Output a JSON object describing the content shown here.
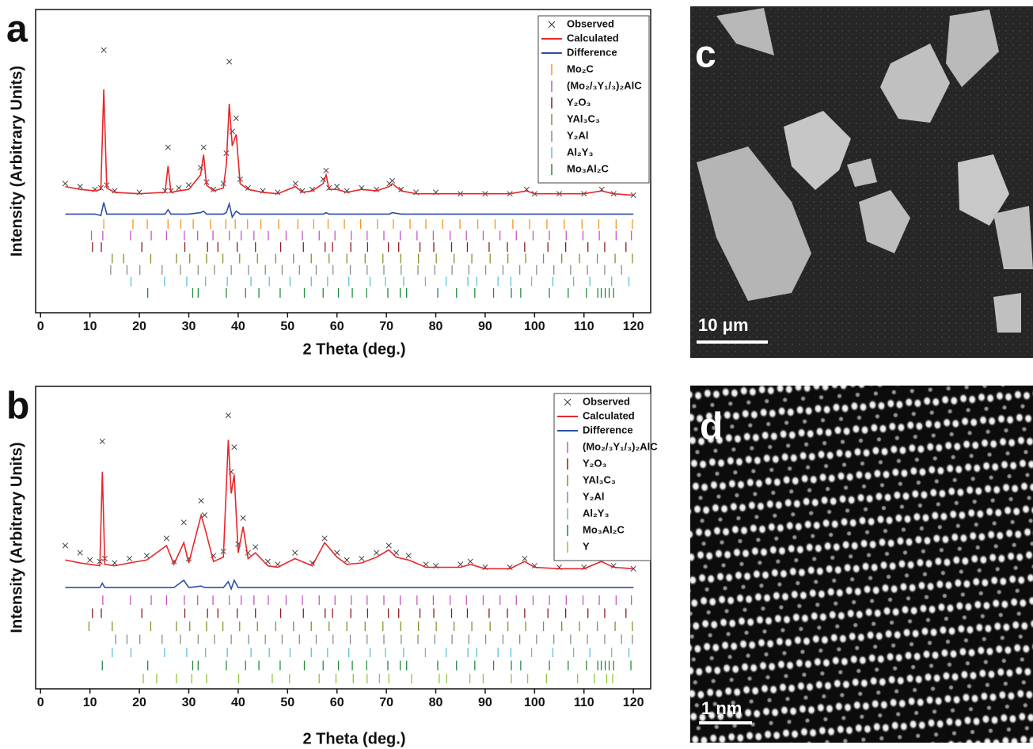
{
  "chart_data": [
    {
      "type": "line",
      "panel_label": "a",
      "xlabel": "2 Theta (deg.)",
      "ylabel": "Intensity (Arbitrary Units)",
      "xlim": [
        -1,
        123.5
      ],
      "xticks": [
        0,
        10,
        20,
        30,
        40,
        50,
        60,
        70,
        80,
        90,
        100,
        110,
        120
      ],
      "ylim": [
        -80,
        129
      ],
      "legend": "upper right",
      "x": [
        5,
        8,
        11,
        12.2,
        12.8,
        13.4,
        15,
        20,
        25.2,
        25.8,
        26.4,
        28,
        30,
        32.4,
        33,
        33.6,
        35,
        37,
        37.6,
        38.2,
        38.8,
        39.6,
        40.4,
        42,
        45,
        48,
        51.6,
        53,
        55,
        57.2,
        57.8,
        58.4,
        60,
        62,
        65,
        68,
        70.6,
        71.2,
        73,
        76,
        80,
        85,
        90,
        95,
        98.4,
        100,
        105,
        110,
        113.6,
        116,
        120
      ],
      "series": [
        {
          "name": "Observed",
          "color": "#333333",
          "marker": "x",
          "values": [
            9,
            7,
            5,
            6,
            101,
            8,
            4,
            3,
            4,
            34,
            4,
            6,
            8,
            20,
            34,
            10,
            5,
            9,
            30,
            93,
            45,
            54,
            12,
            6,
            4,
            3,
            9,
            4,
            5,
            12,
            18,
            6,
            7,
            4,
            6,
            5,
            9,
            11,
            5,
            3,
            3,
            2,
            2,
            2,
            5,
            2,
            2,
            2,
            5,
            2,
            1
          ]
        },
        {
          "name": "Calculated",
          "color": "#e8262a",
          "values": [
            7,
            5,
            4,
            5,
            74,
            6,
            3,
            2,
            3,
            21,
            3,
            4,
            5,
            15,
            29,
            8,
            4,
            6,
            22,
            64,
            35,
            43,
            9,
            5,
            3,
            2,
            7,
            3,
            4,
            9,
            15,
            5,
            5,
            3,
            5,
            4,
            7,
            9,
            4,
            2,
            2,
            2,
            2,
            2,
            4,
            2,
            2,
            2,
            4,
            2,
            1
          ]
        },
        {
          "name": "Difference",
          "color": "#2e4fa3",
          "values": [
            -12,
            -12,
            -12,
            -13,
            -4,
            -12,
            -12,
            -12,
            -12,
            -9,
            -12,
            -12,
            -12,
            -11,
            -10,
            -12,
            -12,
            -12,
            -11,
            -5,
            -14,
            -10,
            -12,
            -12,
            -12,
            -12,
            -12,
            -12,
            -12,
            -12,
            -11,
            -12,
            -12,
            -12,
            -12,
            -12,
            -12,
            -11,
            -12,
            -12,
            -12,
            -12,
            -12,
            -12,
            -12,
            -12,
            -12,
            -12,
            -12,
            -12,
            -12
          ]
        }
      ],
      "reflections": [
        {
          "name": "Mo₂C",
          "color": "#f7941d",
          "positions": [
            12.8,
            18.7,
            21.6,
            25.8,
            28.4,
            30.9,
            34.4,
            37.5,
            39.4,
            41.9,
            44.6,
            48.2,
            52.1,
            55.3,
            58.2,
            61.5,
            64.8,
            68.2,
            71.4,
            74.8,
            78,
            81.4,
            84.9,
            88.5,
            92,
            95.6,
            99,
            102.5,
            106,
            109.6,
            113,
            116.5,
            119.8
          ]
        },
        {
          "name": "(Mo₂/₃Y₁/₃)₂AlC",
          "color": "#c655c6",
          "positions": [
            10.3,
            12.6,
            18.2,
            22.4,
            25.5,
            29.1,
            31.8,
            34.9,
            38.2,
            40.6,
            43.2,
            46.1,
            49.7,
            53,
            56.4,
            59.6,
            62.9,
            66.1,
            69.5,
            72.8,
            76.2,
            79.5,
            82.9,
            86.2,
            89.6,
            93,
            96.3,
            99.7,
            103,
            106.4,
            109.8,
            113.1,
            116.5,
            119.6
          ]
        },
        {
          "name": "Y₂O₃",
          "color": "#8b1a1a",
          "positions": [
            10.5,
            12.3,
            20.5,
            29.2,
            33.8,
            35.9,
            39.8,
            43.5,
            48.6,
            53.2,
            57.6,
            59.1,
            62.8,
            66.2,
            70.4,
            72.5,
            76.8,
            79.6,
            83.2,
            86.4,
            90.8,
            94.5,
            98,
            102.7,
            106.3,
            110.8,
            114.2,
            118.5
          ]
        },
        {
          "name": "YAl₃C₃",
          "color": "#8c8c28",
          "positions": [
            14.5,
            16.8,
            22.3,
            27.5,
            30.2,
            33.6,
            36.9,
            40.3,
            43.9,
            47.6,
            51.2,
            54.8,
            58.4,
            62,
            65.7,
            69.3,
            72.9,
            76.5,
            80.1,
            83.7,
            87.3,
            91,
            94.6,
            98.2,
            101.8,
            105.5,
            109.1,
            112.7,
            116.3,
            119.8
          ]
        },
        {
          "name": "Y₂Al",
          "color": "#8c8c8c",
          "positions": [
            14.2,
            17.5,
            20.1,
            24.6,
            28.3,
            31.9,
            35.2,
            38.6,
            42.1,
            45.5,
            48.9,
            52.4,
            55.8,
            59.2,
            62.7,
            66.1,
            69.5,
            73,
            76.4,
            79.8,
            83.3,
            86.7,
            90.1,
            93.6,
            97,
            100.4,
            103.9,
            107.3,
            110.7,
            114.2,
            117.6
          ]
        },
        {
          "name": "Al₂Y₃",
          "color": "#5bc0de",
          "positions": [
            18.3,
            25.1,
            29.6,
            33.4,
            37.8,
            42.6,
            46.3,
            50.5,
            54.8,
            58.1,
            62.4,
            66.7,
            69.8,
            73.5,
            77.9,
            82.1,
            86.5,
            88.3,
            92.6,
            95.2,
            99.4,
            103.7,
            107.9,
            111.2,
            115.6,
            119.1
          ]
        },
        {
          "name": "Mo₃Al₂C",
          "color": "#1e8c3a",
          "positions": [
            21.7,
            30.8,
            31.9,
            37.6,
            41.5,
            44.2,
            48.5,
            53.4,
            57.2,
            60.3,
            63.1,
            66,
            70.3,
            72.8,
            74.1,
            80.4,
            84.2,
            87.9,
            91.7,
            95.3,
            97.2,
            103,
            106.8,
            110.5,
            112.8,
            113.5,
            114.3,
            115.1,
            116
          ]
        }
      ]
    },
    {
      "type": "line",
      "panel_label": "b",
      "xlabel": "2 Theta (deg.)",
      "ylabel": "Intensity (Arbitrary Units)",
      "xlim": [
        -1,
        123.5
      ],
      "xticks": [
        0,
        10,
        20,
        30,
        40,
        50,
        60,
        70,
        80,
        90,
        100,
        110,
        120
      ],
      "ylim": [
        -80,
        129
      ],
      "legend": "upper right",
      "x": [
        5,
        8,
        10,
        12,
        12.5,
        13,
        15,
        18,
        21.5,
        25.5,
        27,
        29,
        30,
        32.5,
        33.2,
        35,
        37,
        38,
        38.6,
        39.2,
        40,
        41,
        42,
        43.5,
        46,
        48,
        51.5,
        55,
        57.5,
        60,
        62,
        65,
        68,
        70.5,
        72,
        74.5,
        78,
        80,
        85,
        87,
        90,
        95,
        98,
        100,
        105,
        110,
        113.5,
        116,
        120
      ],
      "series": [
        {
          "name": "Observed",
          "color": "#333333",
          "marker": "x",
          "values": [
            19,
            14,
            9,
            8,
            91,
            10,
            7,
            10,
            12,
            24,
            8,
            35,
            10,
            50,
            40,
            12,
            15,
            109,
            70,
            87,
            20,
            38,
            14,
            18,
            8,
            6,
            14,
            7,
            24,
            14,
            9,
            10,
            14,
            19,
            14,
            12,
            6,
            5,
            6,
            8,
            4,
            4,
            10,
            5,
            4,
            4,
            10,
            5,
            3
          ]
        },
        {
          "name": "Calculated",
          "color": "#e8262a",
          "values": [
            9,
            7,
            6,
            5,
            70,
            6,
            5,
            7,
            9,
            19,
            6,
            21,
            7,
            40,
            32,
            8,
            11,
            92,
            55,
            68,
            14,
            32,
            10,
            14,
            5,
            4,
            10,
            5,
            21,
            11,
            6,
            7,
            11,
            16,
            11,
            9,
            4,
            4,
            4,
            6,
            3,
            3,
            8,
            4,
            3,
            3,
            8,
            4,
            3
          ]
        },
        {
          "name": "Difference",
          "color": "#2e4fa3",
          "values": [
            -10,
            -10,
            -10,
            -10,
            -7,
            -10,
            -10,
            -10,
            -10,
            -10,
            -10,
            -5,
            -10,
            -9,
            -10,
            -10,
            -10,
            -6,
            -11,
            -5,
            -10,
            -10,
            -10,
            -10,
            -10,
            -10,
            -10,
            -10,
            -10,
            -10,
            -10,
            -10,
            -10,
            -10,
            -10,
            -10,
            -10,
            -10,
            -10,
            -10,
            -10,
            -10,
            -10,
            -10,
            -10,
            -10,
            -10,
            -10,
            -10
          ]
        }
      ],
      "reflections": [
        {
          "name": "(Mo₂/₃Y₁/₃)₂AlC",
          "color": "#c655c6",
          "positions": [
            12.6,
            18.2,
            22.4,
            25.5,
            29.1,
            31.8,
            34.9,
            38.2,
            40.6,
            43.2,
            46.1,
            49.7,
            53,
            56.4,
            59.6,
            62.9,
            66.1,
            69.5,
            72.8,
            76.2,
            79.5,
            82.9,
            86.2,
            89.6,
            93,
            96.3,
            99.7,
            103,
            106.4,
            109.8,
            113.1,
            116.5,
            119.6
          ]
        },
        {
          "name": "Y₂O₃",
          "color": "#8b1a1a",
          "positions": [
            10.5,
            12.3,
            20.5,
            29.2,
            33.8,
            35.9,
            39.8,
            43.5,
            48.6,
            53.2,
            57.6,
            59.1,
            62.8,
            66.2,
            70.4,
            72.5,
            76.8,
            79.6,
            83.2,
            86.4,
            90.8,
            94.5,
            98,
            102.7,
            106.3,
            110.8,
            114.2,
            118.5
          ]
        },
        {
          "name": "YAl₃C₃",
          "color": "#8c8c28",
          "positions": [
            9.8,
            14.5,
            22.3,
            27.5,
            30.2,
            33.6,
            36.9,
            40.3,
            43.9,
            47.6,
            51.2,
            54.8,
            58.4,
            62,
            65.7,
            69.3,
            72.9,
            76.5,
            80.1,
            83.7,
            87.3,
            91,
            94.6,
            98.2,
            101.8,
            105.5,
            109.1,
            112.7,
            116.3,
            119.8
          ]
        },
        {
          "name": "Y₂Al",
          "color": "#8c8c8c",
          "positions": [
            15.2,
            17.5,
            20.1,
            24.6,
            28.3,
            31.9,
            35.2,
            38.6,
            42.1,
            45.5,
            48.9,
            52.4,
            55.8,
            59.2,
            62.7,
            66.1,
            69.5,
            73,
            76.4,
            79.8,
            83.3,
            86.7,
            90.1,
            93.6,
            97,
            100.4,
            103.9,
            107.3,
            110.7,
            114.2,
            117.6,
            119.8
          ]
        },
        {
          "name": "Al₂Y₃",
          "color": "#5bc0de",
          "positions": [
            14.5,
            18.3,
            25.1,
            29.6,
            33.4,
            37.8,
            42.6,
            46.3,
            50.5,
            54.8,
            58.1,
            62.4,
            66.7,
            69.8,
            73.5,
            77.9,
            82.1,
            86.5,
            88.3,
            92.6,
            95.2,
            99.4,
            103.7,
            107.9,
            111.2,
            115.6,
            119.1
          ]
        },
        {
          "name": "Mo₃Al₂C",
          "color": "#1e8c3a",
          "positions": [
            12.5,
            21.7,
            30.8,
            31.9,
            37.6,
            41.5,
            44.2,
            48.5,
            53.4,
            57.2,
            60.3,
            63.1,
            66,
            70.3,
            72.8,
            74.1,
            80.4,
            84.2,
            87.9,
            91.7,
            95.3,
            97.2,
            103,
            106.8,
            110.5,
            112.8,
            113.5,
            114.3,
            115.1,
            116,
            119.5
          ]
        },
        {
          "name": "Y",
          "color": "#8ec63f",
          "positions": [
            20.8,
            23.5,
            27.5,
            30.6,
            33.6,
            40.1,
            46.9,
            50.4,
            56.4,
            59.8,
            63.3,
            66.1,
            68.6,
            70.5,
            75.1,
            80.7,
            82.2,
            86.9,
            89.6,
            95.3,
            98.6,
            102.4,
            108.7,
            112.1,
            114.6,
            115.8
          ]
        }
      ]
    }
  ],
  "panels": [
    {
      "label": "c",
      "scale_bar": "10 μm"
    },
    {
      "label": "d",
      "scale_bar": "1 nm"
    }
  ]
}
